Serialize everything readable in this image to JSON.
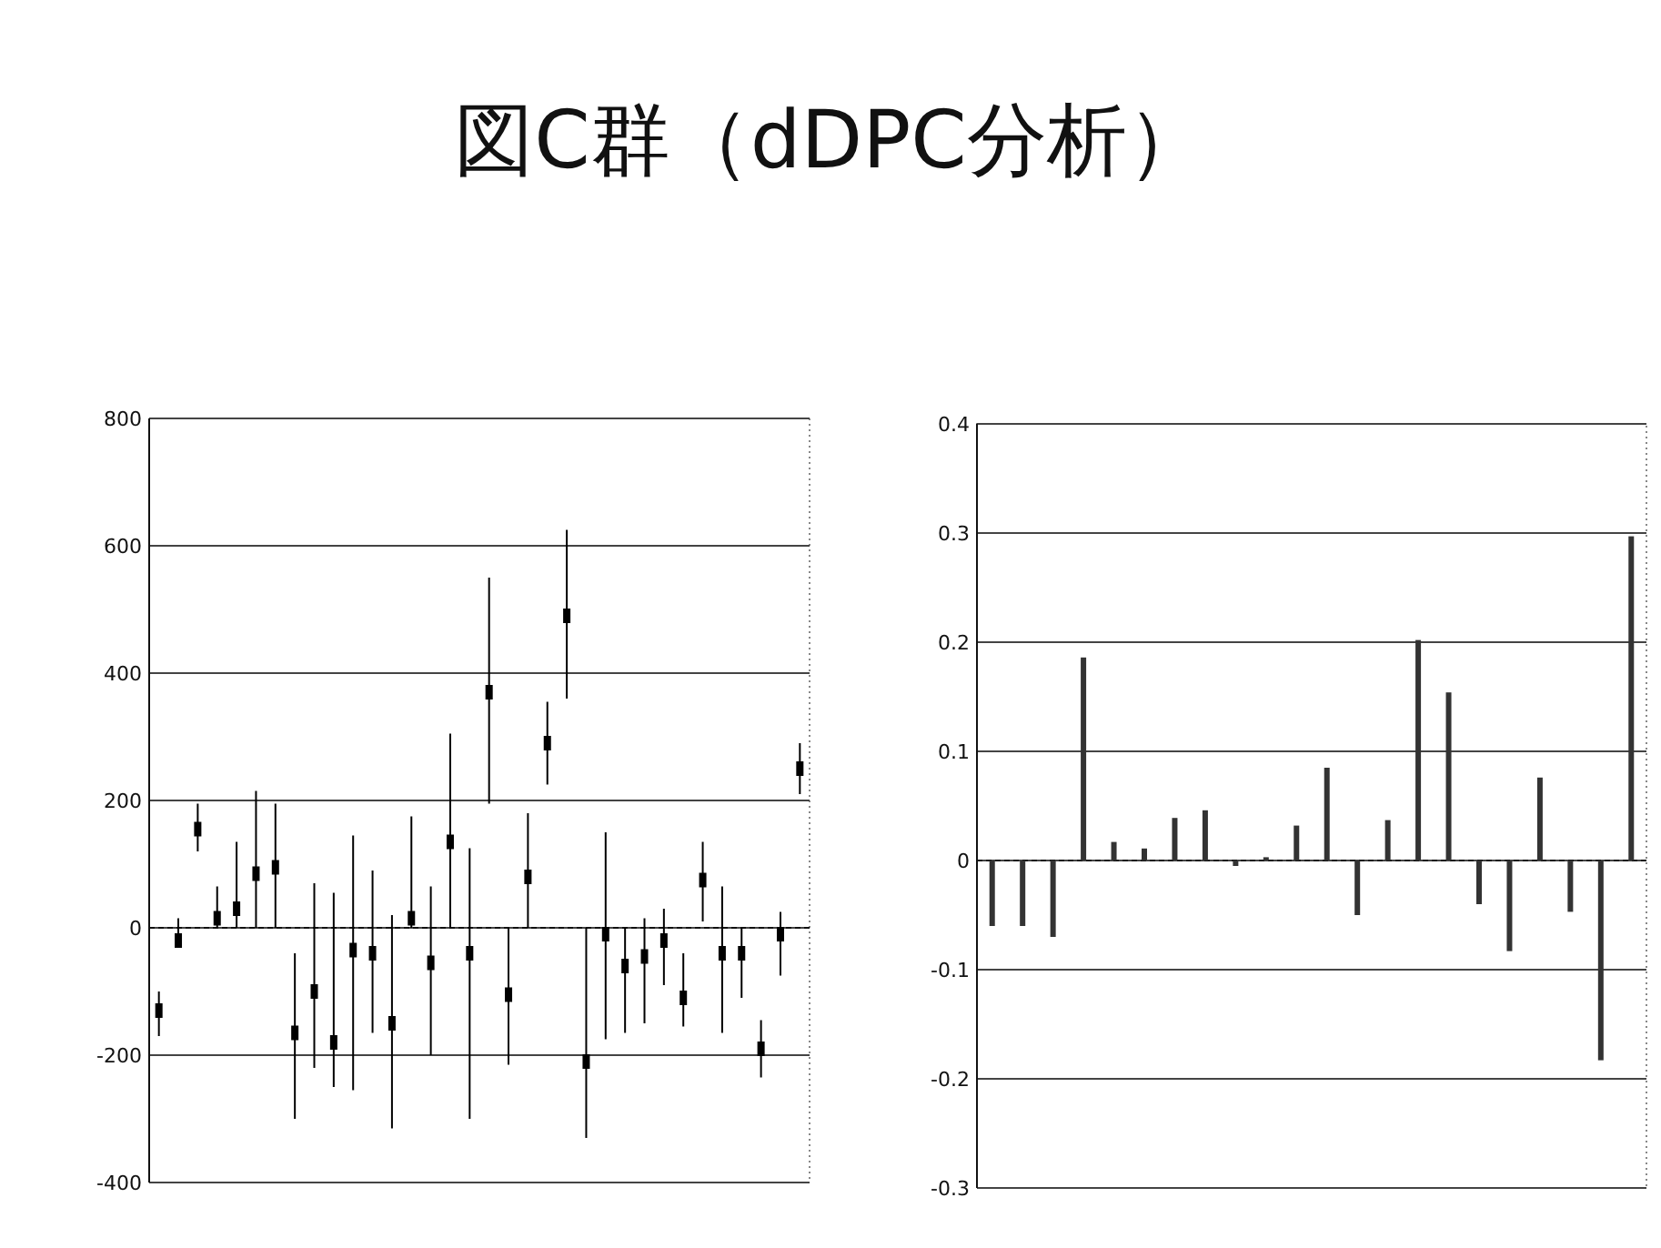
{
  "chart_data": [
    {
      "type": "scatter",
      "title": "図C群（dDPC分析）",
      "marker": "square",
      "ref_lines": [
        {
          "axis": "y",
          "value": 0,
          "line_style": "dashed"
        }
      ],
      "color": "#000000",
      "grid": "y",
      "ylim": [
        -400,
        800
      ],
      "yticks": [
        -400,
        -200,
        0,
        200,
        400,
        600,
        800
      ],
      "categories": [
        null,
        null,
        null,
        null,
        null,
        null,
        null,
        null,
        null,
        null,
        null,
        null,
        null,
        null,
        null,
        null,
        null,
        null,
        null,
        null,
        null,
        null,
        null,
        null,
        null,
        null,
        null,
        null,
        null,
        null,
        null,
        null,
        null,
        null
      ],
      "values": [
        -130,
        -20,
        155,
        15,
        30,
        85,
        95,
        -165,
        -100,
        -180,
        -35,
        -40,
        -150,
        15,
        -55,
        135,
        -40,
        370,
        -105,
        80,
        290,
        490,
        -210,
        -10,
        -60,
        -45,
        -20,
        -110,
        75,
        -40,
        -40,
        -190,
        -10,
        250
      ],
      "errors": [
        [
          -170,
          -100
        ],
        [
          -30,
          15
        ],
        [
          120,
          195
        ],
        [
          0,
          65
        ],
        [
          0,
          135
        ],
        [
          0,
          215
        ],
        [
          0,
          195
        ],
        [
          -300,
          -40
        ],
        [
          -220,
          70
        ],
        [
          -250,
          55
        ],
        [
          -255,
          145
        ],
        [
          -165,
          90
        ],
        [
          -315,
          20
        ],
        [
          0,
          175
        ],
        [
          -200,
          65
        ],
        [
          0,
          305
        ],
        [
          -300,
          125
        ],
        [
          195,
          550
        ],
        [
          -215,
          0
        ],
        [
          0,
          180
        ],
        [
          225,
          355
        ],
        [
          360,
          625
        ],
        [
          -330,
          0
        ],
        [
          -175,
          150
        ],
        [
          -165,
          0
        ],
        [
          -150,
          15
        ],
        [
          -90,
          30
        ],
        [
          -155,
          -40
        ],
        [
          10,
          135
        ],
        [
          -165,
          65
        ],
        [
          -110,
          0
        ],
        [
          -235,
          -145
        ],
        [
          -75,
          25
        ],
        [
          210,
          290
        ]
      ]
    },
    {
      "type": "bar",
      "color": "#333333",
      "ref_lines": [
        {
          "axis": "y",
          "value": 0,
          "line_style": "dashed"
        }
      ],
      "grid": "y",
      "ylim": [
        -0.3,
        0.4
      ],
      "yticks": [
        -0.3,
        -0.2,
        -0.1,
        0,
        0.1,
        0.2,
        0.3,
        0.4
      ],
      "categories": [
        null,
        null,
        null,
        null,
        null,
        null,
        null,
        null,
        null,
        null,
        null,
        null,
        null,
        null,
        null,
        null,
        null,
        null,
        null,
        null,
        null,
        null
      ],
      "values": [
        -0.06,
        -0.06,
        -0.07,
        0.186,
        0.017,
        0.011,
        0.039,
        0.046,
        -0.005,
        0.003,
        0.032,
        0.085,
        -0.05,
        0.037,
        0.202,
        0.154,
        -0.04,
        -0.083,
        0.076,
        -0.047,
        -0.183,
        0.297
      ]
    }
  ]
}
